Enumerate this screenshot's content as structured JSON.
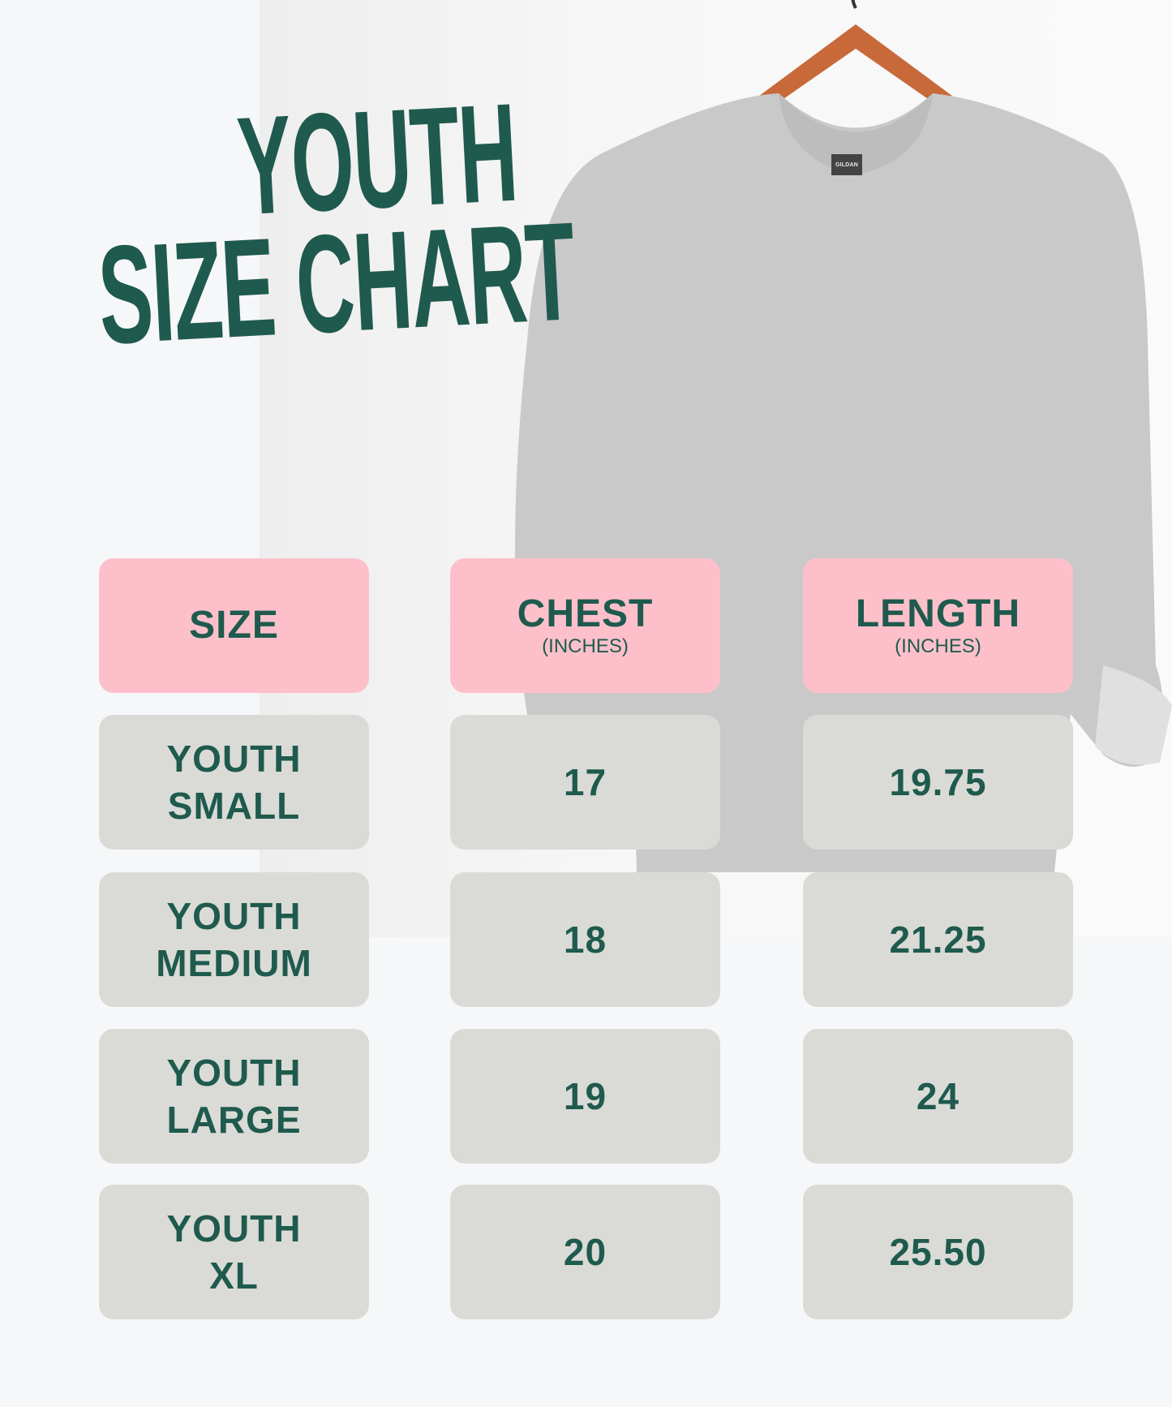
{
  "title": {
    "line1": "YOUTH",
    "line2": "SIZE CHART"
  },
  "colors": {
    "accent": "#1f5a4e",
    "header_bg": "#fdc0cb",
    "cell_bg": "#dadbd6",
    "background": "#f6f7f9"
  },
  "product_image": {
    "icon": "sweatshirt-on-hanger-photo",
    "tag_text": "GILDAN"
  },
  "table": {
    "headers": [
      {
        "label": "SIZE",
        "sub": ""
      },
      {
        "label": "CHEST",
        "sub": "(INCHES)"
      },
      {
        "label": "LENGTH",
        "sub": "(INCHES)"
      }
    ],
    "rows": [
      {
        "size": [
          "YOUTH",
          "SMALL"
        ],
        "chest": "17",
        "length": "19.75"
      },
      {
        "size": [
          "YOUTH",
          "MEDIUM"
        ],
        "chest": "18",
        "length": "21.25"
      },
      {
        "size": [
          "YOUTH",
          "LARGE"
        ],
        "chest": "19",
        "length": "24"
      },
      {
        "size": [
          "YOUTH",
          "XL"
        ],
        "chest": "20",
        "length": "25.50"
      }
    ]
  }
}
